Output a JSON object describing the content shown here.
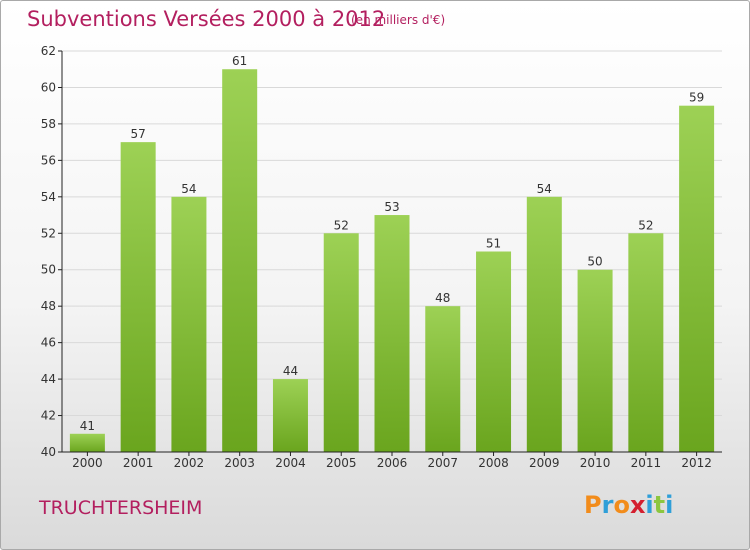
{
  "header": {
    "title": "Subventions Versées 2000 à 2012",
    "subtitle": "(en milliers d'€)"
  },
  "footer": {
    "commune": "TRUCHTERSHEIM",
    "logo_text": "Proxiti",
    "logo_colors": [
      "#f28c1b",
      "#2f9fd8",
      "#f28c1b",
      "#d41f2f",
      "#2f9fd8",
      "#8cc63f",
      "#2f9fd8"
    ]
  },
  "colors": {
    "bar_light": "#9dd155",
    "bar_dark": "#6aa51e",
    "title": "#b31f5f",
    "grid": "#d9d9d9",
    "axis": "#222222"
  },
  "chart_data": {
    "type": "bar",
    "title": "Subventions Versées 2000 à 2012",
    "subtitle": "(en milliers d'€)",
    "categories": [
      "2000",
      "2001",
      "2002",
      "2003",
      "2004",
      "2005",
      "2006",
      "2007",
      "2008",
      "2009",
      "2010",
      "2011",
      "2012"
    ],
    "values": [
      41,
      57,
      54,
      61,
      44,
      52,
      53,
      48,
      51,
      54,
      50,
      52,
      59
    ],
    "ylim": [
      40,
      62
    ],
    "yticks": [
      40,
      42,
      44,
      46,
      48,
      50,
      52,
      54,
      56,
      58,
      60,
      62
    ],
    "xlabel": "",
    "ylabel": "",
    "grid": true,
    "data_labels": true
  }
}
